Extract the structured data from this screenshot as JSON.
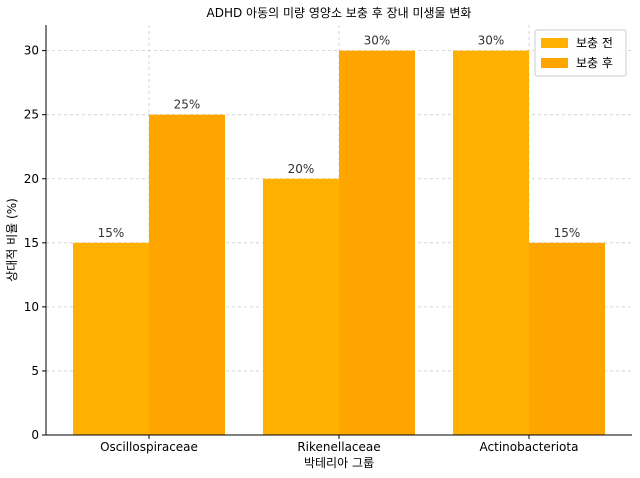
{
  "chart_data": {
    "type": "bar",
    "title": "ADHD 아동의 미량 영양소 보충 후 장내 미생물 변화",
    "xlabel": "박테리아 그룹",
    "ylabel": "상대적 비율 (%)",
    "categories": [
      "Oscillospiraceae",
      "Rikenellaceae",
      "Actinobacteriota"
    ],
    "series": [
      {
        "name": "보충 전",
        "values": [
          15,
          20,
          30
        ],
        "labels": [
          "15%",
          "20%",
          "30%"
        ],
        "color": "#FFB000"
      },
      {
        "name": "보충 후",
        "values": [
          25,
          30,
          15
        ],
        "labels": [
          "25%",
          "30%",
          "15%"
        ],
        "color": "#FFA500"
      }
    ],
    "ylim": [
      0,
      32
    ],
    "yticks": [
      "0",
      "5",
      "10",
      "15",
      "20",
      "25",
      "30"
    ],
    "grid": true,
    "legend_position": "top-right"
  }
}
